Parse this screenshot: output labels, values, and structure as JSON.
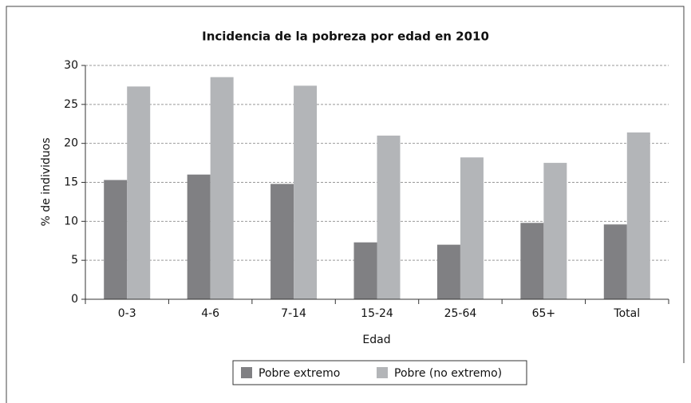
{
  "chart_data": {
    "type": "bar",
    "title": "Incidencia de la pobreza por edad en 2010",
    "x_label": "Edad",
    "y_label": "% de individuos",
    "categories": [
      "0-3",
      "4-6",
      "7-14",
      "15-24",
      "25-64",
      "65+",
      "Total"
    ],
    "series": [
      {
        "name": "Pobre extremo",
        "color": "#808083",
        "values": [
          15.3,
          16.0,
          14.8,
          7.3,
          7.0,
          9.8,
          9.6
        ]
      },
      {
        "name": "Pobre (no extremo)",
        "color": "#b3b5b8",
        "values": [
          27.3,
          28.5,
          27.4,
          21.0,
          18.2,
          17.5,
          21.4
        ]
      }
    ],
    "ylim": [
      0,
      30
    ],
    "yticks": [
      0,
      5,
      10,
      15,
      20,
      25,
      30
    ],
    "grid": true,
    "legend": "bottom"
  }
}
